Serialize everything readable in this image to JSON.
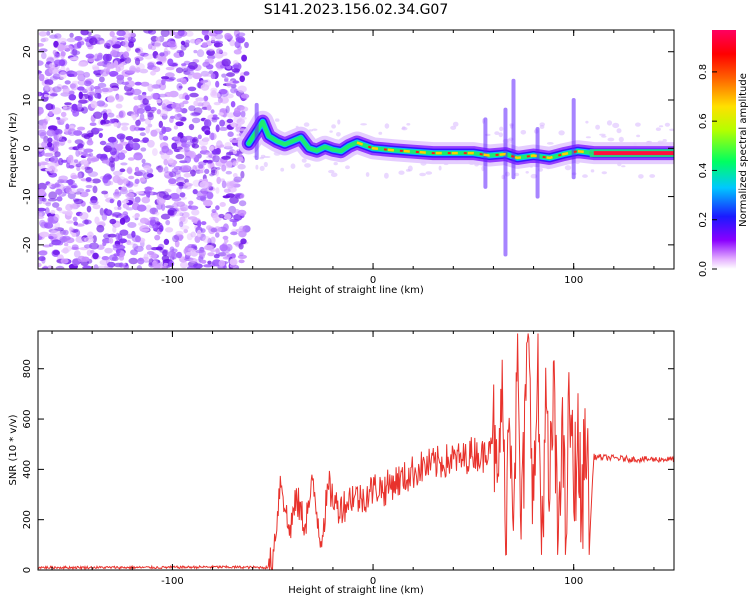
{
  "figure": {
    "title": "S141.2023.156.02.34.G07"
  },
  "chart_data": [
    {
      "type": "heatmap",
      "title": "S141.2023.156.02.34.G07",
      "xlabel": "Height of straight line (km)",
      "ylabel": "Frequency (Hz)",
      "xlim": [
        -167,
        150
      ],
      "ylim": [
        -25,
        24.5
      ],
      "xticks": [
        -100,
        0,
        100
      ],
      "yticks": [
        -20,
        -10,
        0,
        10,
        20
      ],
      "colorbar": {
        "label": "Normalized spectral amplitude",
        "range": [
          0,
          0.97
        ],
        "ticks": [
          "0.0",
          "0.2",
          "0.4",
          "0.6",
          "0.8"
        ],
        "colors": [
          "#ffffff",
          "#ff00ff",
          "#5a00ff",
          "#0044ff",
          "#00ffff",
          "#00ff40",
          "#c8ff00",
          "#ffb000",
          "#ff0000",
          "#ff0050"
        ]
      },
      "noise_region_x": [
        -167,
        -63
      ],
      "ridge": [
        {
          "x": -62,
          "y": 1.0
        },
        {
          "x": -58,
          "y": 3.5
        },
        {
          "x": -55,
          "y": 5.5
        },
        {
          "x": -52,
          "y": 2.5
        },
        {
          "x": -48,
          "y": 1.5
        },
        {
          "x": -44,
          "y": 0.8
        },
        {
          "x": -40,
          "y": 1.5
        },
        {
          "x": -36,
          "y": 2.2
        },
        {
          "x": -32,
          "y": 0.0
        },
        {
          "x": -28,
          "y": -0.5
        },
        {
          "x": -24,
          "y": 0.3
        },
        {
          "x": -20,
          "y": -0.3
        },
        {
          "x": -16,
          "y": -0.6
        },
        {
          "x": -12,
          "y": 0.5
        },
        {
          "x": -8,
          "y": 1.2
        },
        {
          "x": -4,
          "y": 0.6
        },
        {
          "x": 0,
          "y": 0.0
        },
        {
          "x": 10,
          "y": -0.4
        },
        {
          "x": 20,
          "y": -0.7
        },
        {
          "x": 30,
          "y": -1.0
        },
        {
          "x": 40,
          "y": -1.0
        },
        {
          "x": 50,
          "y": -1.0
        },
        {
          "x": 58,
          "y": -1.5
        },
        {
          "x": 66,
          "y": -1.2
        },
        {
          "x": 72,
          "y": -2.0
        },
        {
          "x": 80,
          "y": -1.5
        },
        {
          "x": 88,
          "y": -2.0
        },
        {
          "x": 95,
          "y": -1.2
        },
        {
          "x": 102,
          "y": -0.6
        },
        {
          "x": 110,
          "y": -1.0
        },
        {
          "x": 130,
          "y": -1.0
        },
        {
          "x": 150,
          "y": -1.0
        }
      ]
    },
    {
      "type": "line",
      "xlabel": "Height of straight line (km)",
      "ylabel": "SNR (10 * v/v)",
      "xlim": [
        -167,
        150
      ],
      "ylim": [
        0,
        950
      ],
      "xticks": [
        -100,
        0,
        100
      ],
      "yticks": [
        0,
        200,
        400,
        600,
        800
      ],
      "color": "#e8322c",
      "series": [
        {
          "x": [
            -167,
            -140,
            -110,
            -80,
            -52,
            -50,
            -46,
            -42,
            -38,
            -34,
            -30,
            -26,
            -22,
            -18,
            -14,
            -10,
            -6,
            -2,
            2,
            6,
            10,
            15,
            20,
            25,
            30,
            35,
            40,
            45,
            50,
            55,
            60,
            62,
            64,
            66,
            68,
            70,
            72,
            74,
            76,
            78,
            80,
            82,
            84,
            86,
            88,
            90,
            92,
            94,
            96,
            98,
            100,
            102,
            104,
            106,
            108,
            110,
            120,
            130,
            140,
            150
          ],
          "y": [
            10,
            10,
            10,
            12,
            10,
            40,
            370,
            150,
            280,
            180,
            340,
            120,
            330,
            250,
            260,
            300,
            280,
            310,
            330,
            320,
            350,
            360,
            390,
            410,
            420,
            430,
            440,
            440,
            470,
            450,
            560,
            260,
            730,
            180,
            660,
            320,
            780,
            120,
            650,
            940,
            200,
            820,
            100,
            640,
            240,
            750,
            80,
            600,
            140,
            690,
            300,
            540,
            180,
            600,
            120,
            450,
            445,
            440,
            440,
            440
          ]
        }
      ]
    }
  ]
}
